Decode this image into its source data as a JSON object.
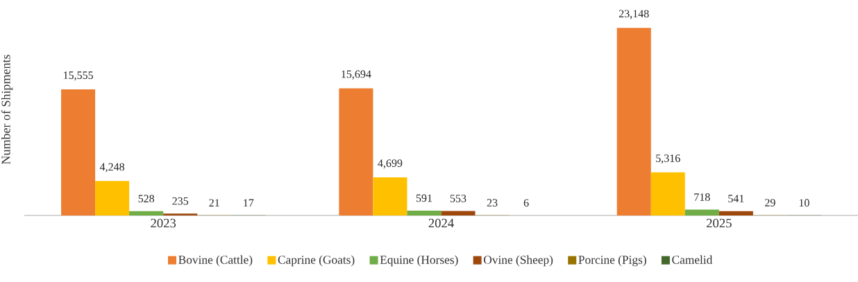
{
  "chart_data": {
    "type": "bar",
    "ylabel": "Number of Shipments",
    "categories": [
      "2023",
      "2024",
      "2025"
    ],
    "series": [
      {
        "name": "Bovine (Cattle)",
        "color": "#ed7d31",
        "values": [
          15555,
          15694,
          23148
        ],
        "value_labels": [
          "15,555",
          "15,694",
          "23,148"
        ]
      },
      {
        "name": "Caprine (Goats)",
        "color": "#ffc000",
        "values": [
          4248,
          4699,
          5316
        ],
        "value_labels": [
          "4,248",
          "4,699",
          "5,316"
        ]
      },
      {
        "name": "Equine (Horses)",
        "color": "#70ad47",
        "values": [
          528,
          591,
          718
        ],
        "value_labels": [
          "528",
          "591",
          "718"
        ]
      },
      {
        "name": "Ovine (Sheep)",
        "color": "#9e480e",
        "values": [
          235,
          553,
          541
        ],
        "value_labels": [
          "235",
          "553",
          "541"
        ]
      },
      {
        "name": "Porcine (Pigs)",
        "color": "#997300",
        "values": [
          21,
          23,
          29
        ],
        "value_labels": [
          "21",
          "23",
          "29"
        ]
      },
      {
        "name": "Camelid",
        "color": "#43682b",
        "values": [
          17,
          6,
          10
        ],
        "value_labels": [
          "17",
          "6",
          "10"
        ]
      }
    ],
    "legend": "bottom"
  }
}
